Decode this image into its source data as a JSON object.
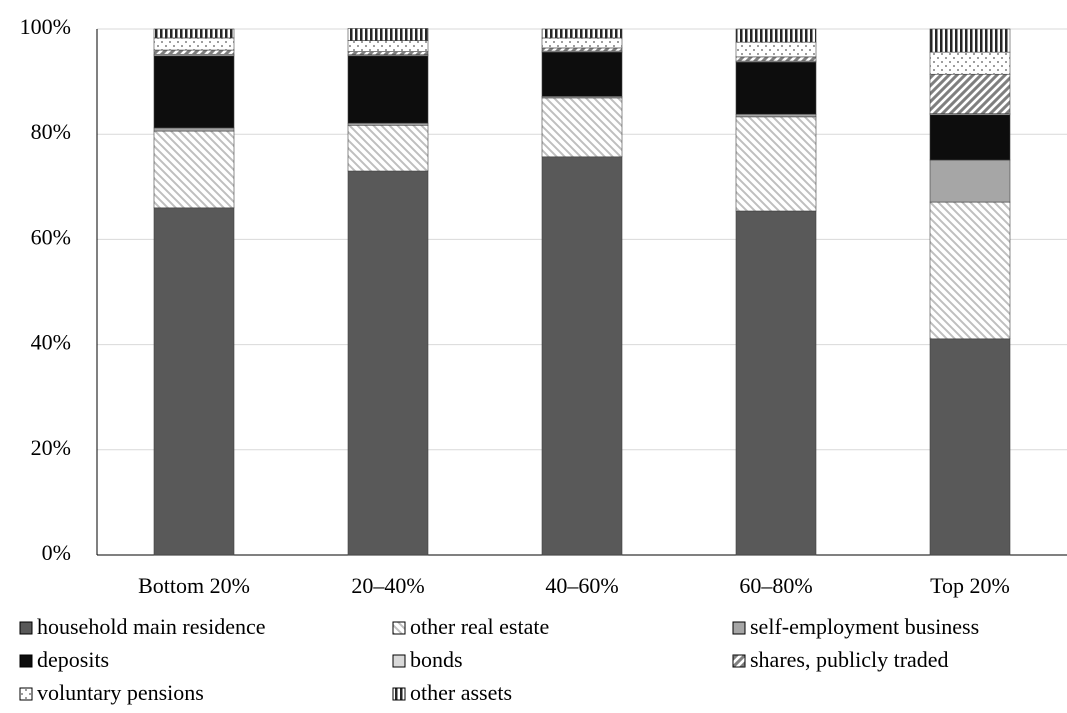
{
  "chart_data": {
    "type": "stacked-bar",
    "categories": [
      "Bottom 20%",
      "20–40%",
      "40–60%",
      "60–80%",
      "Top 20%"
    ],
    "ylim": [
      0,
      100
    ],
    "yticks": [
      {
        "value": 0,
        "label": "0%"
      },
      {
        "value": 20,
        "label": "20%"
      },
      {
        "value": 40,
        "label": "40%"
      },
      {
        "value": 60,
        "label": "60%"
      },
      {
        "value": 80,
        "label": "80%"
      },
      {
        "value": 100,
        "label": "100%"
      }
    ],
    "grid": true,
    "series": [
      {
        "name": "household main residence",
        "color": "#595959",
        "pattern": "solid",
        "values": [
          66.0,
          73.0,
          75.7,
          65.4,
          41.1
        ]
      },
      {
        "name": "other real estate",
        "color": "#bfbfbf",
        "pattern": "hatch-back",
        "values": [
          14.6,
          8.7,
          11.2,
          17.9,
          26.0
        ]
      },
      {
        "name": "self-employment business",
        "color": "#a6a6a6",
        "pattern": "solid",
        "values": [
          0.6,
          0.4,
          0.3,
          0.5,
          8.0
        ]
      },
      {
        "name": "deposits",
        "color": "#0d0d0d",
        "pattern": "solid",
        "values": [
          13.7,
          12.8,
          8.4,
          9.9,
          8.6
        ]
      },
      {
        "name": "bonds",
        "color": "#d9d9d9",
        "pattern": "solid",
        "values": [
          0.3,
          0.2,
          0.2,
          0.2,
          0.2
        ]
      },
      {
        "name": "shares, publicly traded",
        "color": "#7f7f7f",
        "pattern": "hatch-forward",
        "values": [
          0.8,
          0.6,
          0.6,
          0.8,
          7.5
        ]
      },
      {
        "name": "voluntary pensions",
        "color": "#595959",
        "pattern": "dots",
        "values": [
          2.3,
          2.1,
          1.9,
          2.8,
          4.2
        ]
      },
      {
        "name": "other assets",
        "color": "#262626",
        "pattern": "vertical",
        "values": [
          1.7,
          2.3,
          1.7,
          2.5,
          4.4
        ]
      }
    ]
  }
}
